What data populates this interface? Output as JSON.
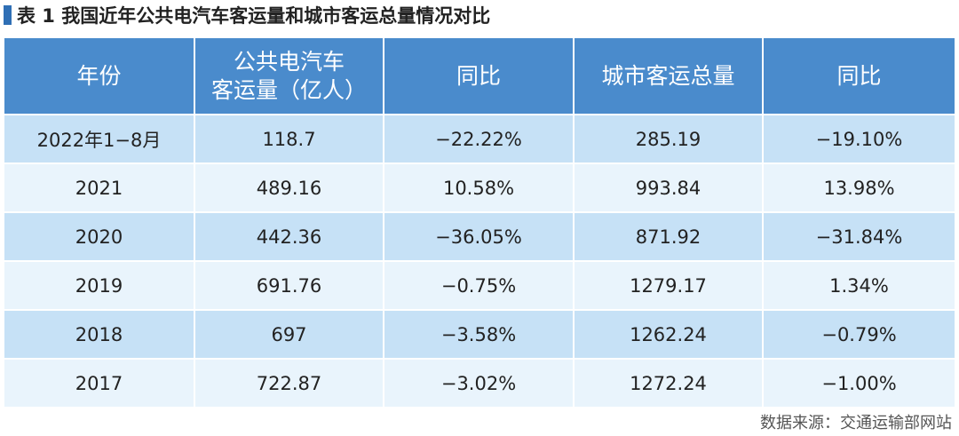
{
  "title": "表 1  我国近年公共电汽车客运量和城市客运总量情况对比",
  "table": {
    "header": [
      [
        "年份"
      ],
      [
        "公共电汽车",
        "客运量（亿人）"
      ],
      [
        "同比"
      ],
      [
        "城市客运总量"
      ],
      [
        "同比"
      ]
    ],
    "rows": [
      [
        "2022年1−8月",
        "118.7",
        "−22.22%",
        "285.19",
        "−19.10%"
      ],
      [
        "2021",
        "489.16",
        "10.58%",
        "993.84",
        "13.98%"
      ],
      [
        "2020",
        "442.36",
        "−36.05%",
        "871.92",
        "−31.84%"
      ],
      [
        "2019",
        "691.76",
        "−0.75%",
        "1279.17",
        "1.34%"
      ],
      [
        "2018",
        "697",
        "−3.58%",
        "1262.24",
        "−0.79%"
      ],
      [
        "2017",
        "722.87",
        "−3.02%",
        "1272.24",
        "−1.00%"
      ]
    ]
  },
  "source": "数据来源：交通运输部网站"
}
